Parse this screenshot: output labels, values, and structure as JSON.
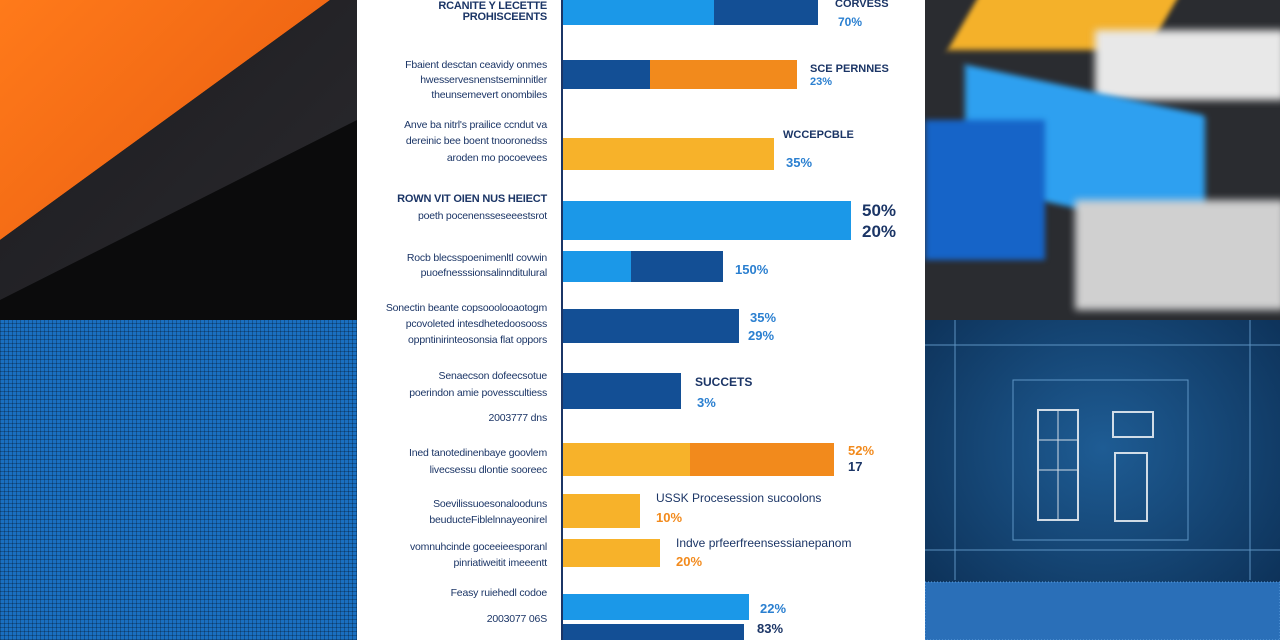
{
  "rows": [
    {
      "label": [
        "RCANITE Y LECETTE",
        "PROHISCEENTS"
      ],
      "notes": [
        "CORVESS",
        "70%"
      ]
    },
    {
      "label": [
        "Fbaient desctan ceavidy onmes",
        "hwesservesnenstseminnitler",
        "theunsemevert onombiles"
      ],
      "notes": [
        "SCE PERNNES",
        "23%"
      ]
    },
    {
      "label": [
        "Anve ba nitrl's prailice ccndut va",
        "dereinic bee boent tnooronedss",
        "aroden mo pocoevees"
      ],
      "notes": [
        "WCCEPCBLE",
        "35%"
      ]
    },
    {
      "label": [
        "ROWN VIT OIEN NUS HEIECT",
        "poeth pocenensseseeestsrot"
      ],
      "notes": [
        "50%",
        "20%"
      ]
    },
    {
      "label": [
        "Rocb blecsspoenimenltl covwin",
        "puoefnesssionsalinnditulural"
      ],
      "notes": [
        "150%"
      ]
    },
    {
      "label": [
        "Sonectin beante copsooolooaotogm",
        "pcovoleted intesdhetedoosooss",
        "oppntinirinteosonsia flat oppors"
      ],
      "notes": [
        "35%",
        "29%"
      ]
    },
    {
      "label": [
        "Senaecson dofeecsotue",
        "poerindon amie povesscultiess",
        "2003777 dns"
      ],
      "notes": [
        "SUCCETS",
        "3%"
      ]
    },
    {
      "label": [
        "Ined tanotedinenbaye goovlem",
        "livecsessu dlontie sooreec"
      ],
      "notes": [
        "52%",
        "17"
      ]
    },
    {
      "label": [
        "Soevilissuoesonalooduns",
        "beuducteFiblelnnayeonirel"
      ],
      "notes": [
        "USSK Procesession sucoolons",
        "10%"
      ]
    },
    {
      "label": [
        "vomnuhcinde goceeieesporanl",
        "pinriatiweitit imeeentt"
      ],
      "notes": [
        "Indve prfeerfreensessianepanom",
        "20%"
      ]
    },
    {
      "label": [
        "Feasy ruiehedl codoe",
        "2003077 06S"
      ],
      "notes": [
        "22%",
        "83%"
      ]
    }
  ]
}
